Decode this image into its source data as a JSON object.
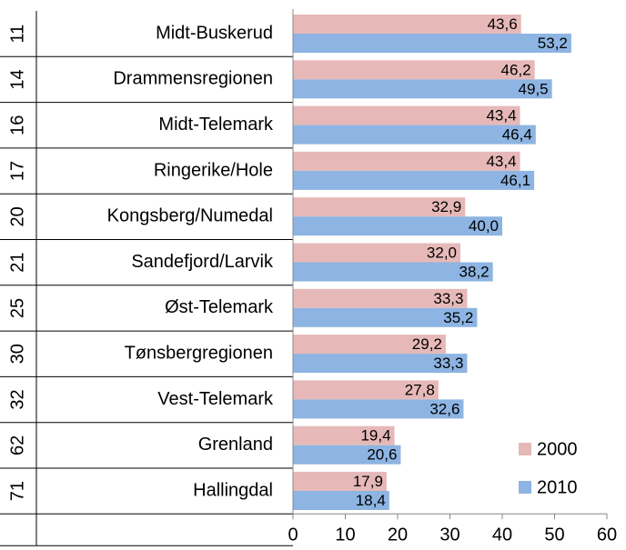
{
  "chart_data": {
    "type": "bar",
    "orientation": "horizontal",
    "ranks": [
      "11",
      "14",
      "16",
      "17",
      "20",
      "21",
      "25",
      "30",
      "32",
      "62",
      "71"
    ],
    "categories": [
      "Midt-Buskerud",
      "Drammensregionen",
      "Midt-Telemark",
      "Ringerike/Hole",
      "Kongsberg/Numedal",
      "Sandefjord/Larvik",
      "Øst-Telemark",
      "Tønsbergregionen",
      "Vest-Telemark",
      "Grenland",
      "Hallingdal"
    ],
    "series": [
      {
        "name": "2000",
        "color": "#e6b9b8",
        "values": [
          43.6,
          46.2,
          43.4,
          43.4,
          32.9,
          32.0,
          33.3,
          29.2,
          27.8,
          19.4,
          17.9
        ],
        "value_labels": [
          "43,6",
          "46,2",
          "43,4",
          "43,4",
          "32,9",
          "32,0",
          "33,3",
          "29,2",
          "27,8",
          "19,4",
          "17,9"
        ]
      },
      {
        "name": "2010",
        "color": "#8db4e2",
        "values": [
          53.2,
          49.5,
          46.4,
          46.1,
          40.0,
          38.2,
          35.2,
          33.3,
          32.6,
          20.6,
          18.4
        ],
        "value_labels": [
          "53,2",
          "49,5",
          "46,4",
          "46,1",
          "40,0",
          "38,2",
          "35,2",
          "33,3",
          "32,6",
          "20,6",
          "18,4"
        ]
      }
    ],
    "xlim": [
      0,
      60
    ],
    "xticks": [
      0,
      10,
      20,
      30,
      40,
      50,
      60
    ],
    "legend": "lower right"
  }
}
